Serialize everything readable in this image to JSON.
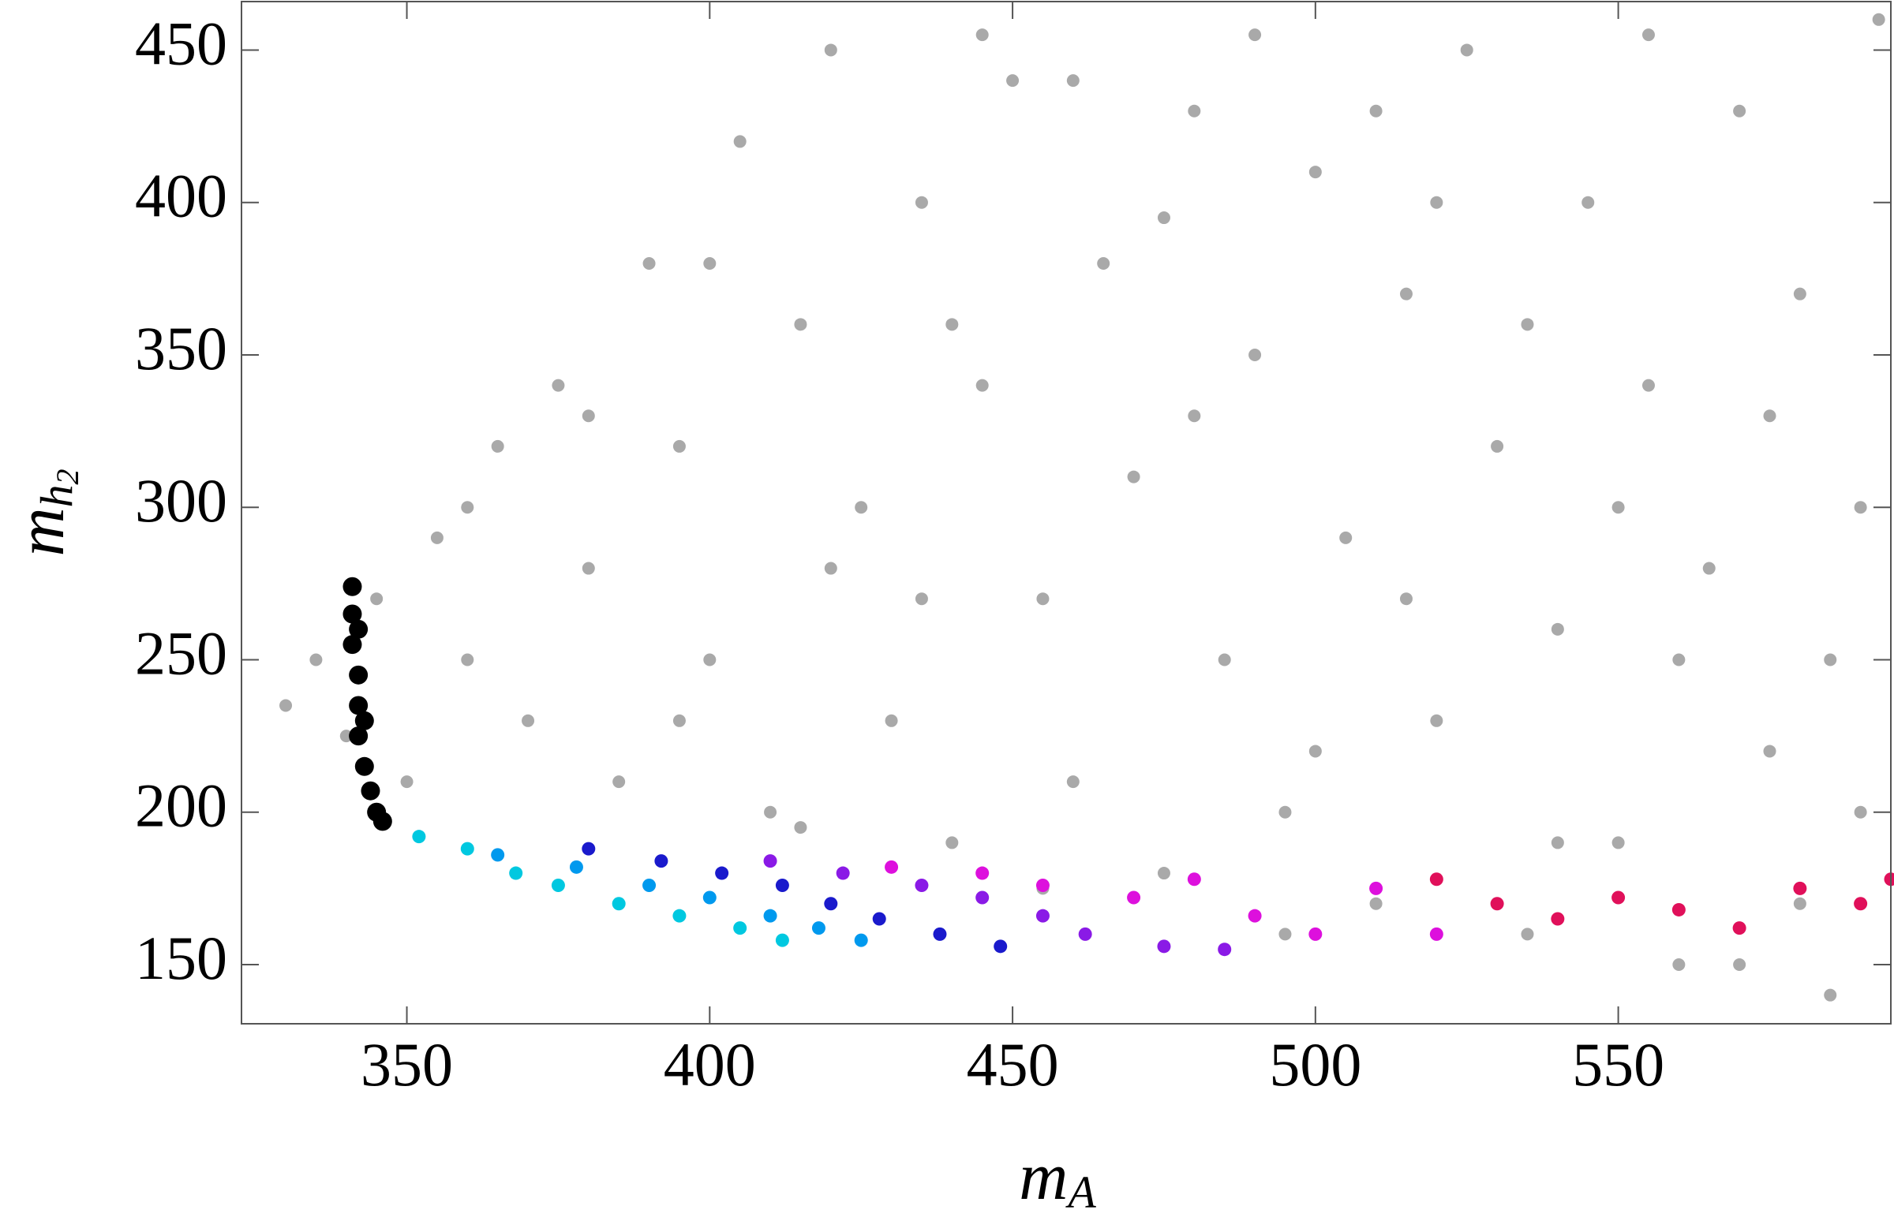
{
  "chart_data": {
    "type": "scatter",
    "xlabel": {
      "main": "m",
      "sub": "A"
    },
    "ylabel": {
      "main": "m",
      "sub": "h",
      "subsub": "2"
    },
    "xlim": [
      322.7,
      595.0
    ],
    "ylim": [
      130.6,
      465.9
    ],
    "xticks": [
      350,
      400,
      450,
      500,
      550
    ],
    "yticks": [
      150,
      200,
      250,
      300,
      350,
      400,
      450
    ],
    "series": [
      {
        "color": "#a9a9a9",
        "x": [
          330,
          335,
          340,
          345,
          350,
          355,
          360,
          365,
          370,
          375,
          380,
          385,
          390,
          395,
          400,
          405,
          410,
          415,
          420,
          425,
          430,
          435,
          440,
          445,
          450,
          455,
          460,
          465,
          470,
          475,
          480,
          485,
          490,
          495,
          500,
          505,
          510,
          515,
          520,
          525,
          530,
          535,
          540,
          545,
          550,
          555,
          560,
          565,
          570,
          575,
          580,
          585,
          590,
          593,
          360,
          380,
          400,
          420,
          440,
          460,
          480,
          500,
          520,
          540,
          560,
          580,
          395,
          415,
          435,
          455,
          475,
          495,
          515,
          535,
          555,
          575,
          590,
          445,
          490,
          530,
          570,
          585,
          510,
          550
        ],
        "values": [
          235,
          250,
          225,
          270,
          210,
          290,
          250,
          320,
          230,
          340,
          280,
          210,
          380,
          320,
          250,
          420,
          200,
          360,
          450,
          300,
          230,
          400,
          190,
          340,
          440,
          270,
          210,
          380,
          310,
          180,
          430,
          250,
          350,
          200,
          410,
          290,
          170,
          370,
          230,
          450,
          320,
          160,
          260,
          400,
          190,
          340,
          150,
          280,
          430,
          220,
          370,
          140,
          300,
          460,
          300,
          330,
          380,
          280,
          360,
          440,
          330,
          220,
          400,
          190,
          250,
          170,
          230,
          195,
          270,
          175,
          395,
          160,
          270,
          360,
          455,
          330,
          200,
          455,
          455,
          170,
          150,
          250,
          430,
          300
        ]
      },
      {
        "color": "#00c8e0",
        "x": [
          352,
          360,
          368,
          375,
          385,
          395,
          405,
          412
        ],
        "values": [
          192,
          188,
          180,
          176,
          170,
          166,
          162,
          158
        ]
      },
      {
        "color": "#0099ee",
        "x": [
          365,
          378,
          390,
          400,
          410,
          418,
          425
        ],
        "values": [
          186,
          182,
          176,
          172,
          166,
          162,
          158
        ]
      },
      {
        "color": "#1a1acc",
        "x": [
          380,
          392,
          402,
          412,
          420,
          428,
          438,
          448
        ],
        "values": [
          188,
          184,
          180,
          176,
          170,
          165,
          160,
          156
        ]
      },
      {
        "color": "#8a1ae6",
        "x": [
          410,
          422,
          435,
          445,
          455,
          462,
          475,
          485
        ],
        "values": [
          184,
          180,
          176,
          172,
          166,
          160,
          156,
          155
        ]
      },
      {
        "color": "#dd10dd",
        "x": [
          430,
          445,
          455,
          470,
          480,
          490,
          500,
          510,
          520
        ],
        "values": [
          182,
          180,
          176,
          172,
          178,
          166,
          160,
          175,
          160
        ]
      },
      {
        "color": "#e0105a",
        "x": [
          520,
          530,
          540,
          550,
          560,
          570,
          580,
          590,
          595
        ],
        "values": [
          178,
          170,
          165,
          172,
          168,
          162,
          175,
          170,
          178
        ]
      },
      {
        "color": "#000000",
        "x": [
          341,
          341,
          341,
          342,
          342,
          342,
          343,
          344,
          345,
          346,
          342,
          343
        ],
        "values": [
          274,
          265,
          255,
          245,
          235,
          225,
          215,
          207,
          200,
          197,
          260,
          230
        ]
      }
    ]
  }
}
